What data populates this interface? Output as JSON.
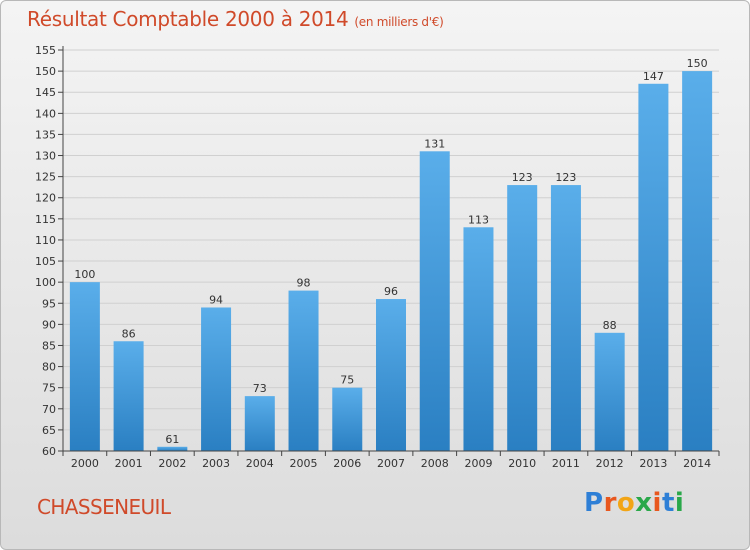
{
  "header": {
    "title": "Résultat Comptable 2000 à 2014",
    "unit": "(en milliers d'€)"
  },
  "footer": {
    "place": "CHASSENEUIL",
    "logo": "Proxiti",
    "logo_colors": [
      "#2e7fd6",
      "#e8571e",
      "#f2a516",
      "#2aa84a",
      "#e8571e",
      "#2e7fd6",
      "#2aa84a"
    ]
  },
  "chart_data": {
    "type": "bar",
    "title": "Résultat Comptable 2000 à 2014",
    "subtitle": "(en milliers d'€)",
    "categories": [
      "2000",
      "2001",
      "2002",
      "2003",
      "2004",
      "2005",
      "2006",
      "2007",
      "2008",
      "2009",
      "2010",
      "2011",
      "2012",
      "2013",
      "2014"
    ],
    "values": [
      100,
      86,
      61,
      94,
      73,
      98,
      75,
      96,
      131,
      113,
      123,
      123,
      88,
      147,
      150
    ],
    "ylim": [
      60,
      155
    ],
    "ytick_step": 5,
    "grid": true,
    "bar_color": "#4a9ee0",
    "xlabel": "",
    "ylabel": ""
  }
}
